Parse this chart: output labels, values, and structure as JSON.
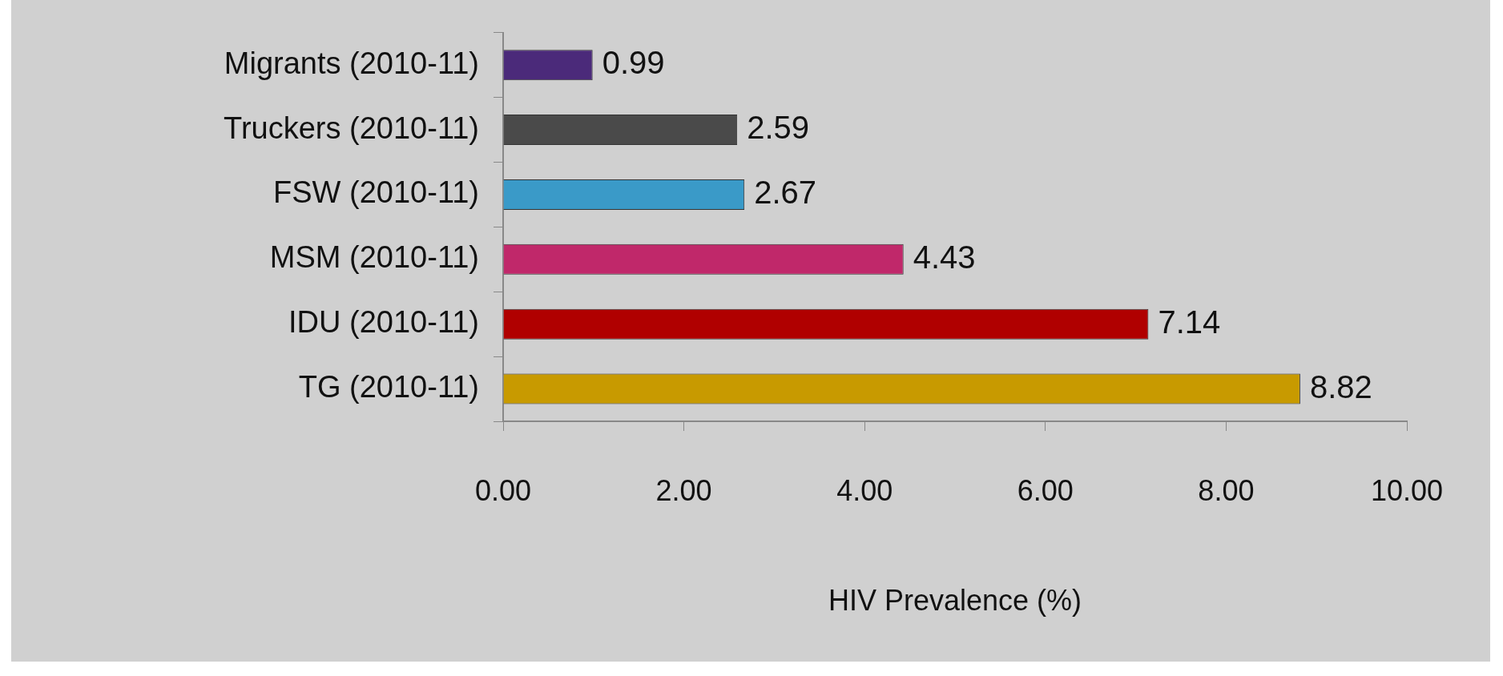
{
  "chart_data": {
    "type": "bar",
    "orientation": "horizontal",
    "xlabel": "HIV Prevalence (%)",
    "categories": [
      "Migrants (2010-11)",
      "Truckers (2010-11)",
      "FSW (2010-11)",
      "MSM (2010-11)",
      "IDU (2010-11)",
      "TG (2010-11)"
    ],
    "values": [
      0.99,
      2.59,
      2.67,
      4.43,
      7.14,
      8.82
    ],
    "colors": [
      "#4b2a7a",
      "#4a4a4a",
      "#3a9ac8",
      "#c0286a",
      "#b00000",
      "#c89a00"
    ],
    "xlim": [
      0,
      10
    ],
    "xticks": [
      {
        "value": 0,
        "label": "0.00"
      },
      {
        "value": 2,
        "label": "2.00"
      },
      {
        "value": 4,
        "label": "4.00"
      },
      {
        "value": 6,
        "label": "6.00"
      },
      {
        "value": 8,
        "label": "8.00"
      },
      {
        "value": 10,
        "label": "10.00"
      }
    ],
    "data_labels": true,
    "grid": false,
    "legend": false
  }
}
